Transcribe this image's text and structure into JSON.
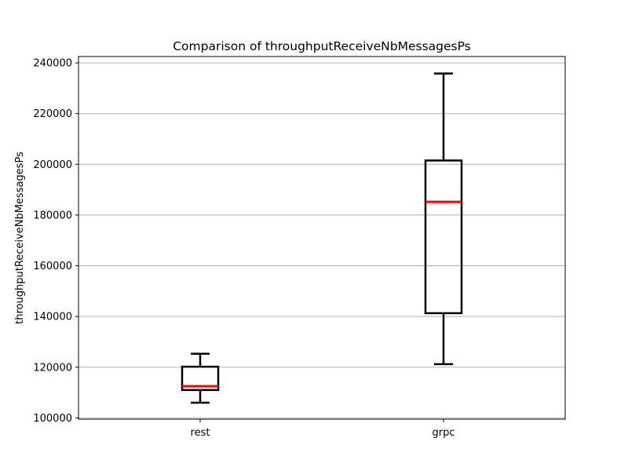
{
  "chart_data": {
    "type": "box",
    "title": "Comparison of throughputReceiveNbMessagesPs",
    "xlabel": "",
    "ylabel": "throughputReceiveNbMessagesPs",
    "categories": [
      "rest",
      "grpc"
    ],
    "boxes": [
      {
        "category": "rest",
        "whisker_low": 106000,
        "q1": 111000,
        "median": 112500,
        "q3": 120200,
        "whisker_high": 125300
      },
      {
        "category": "grpc",
        "whisker_low": 121200,
        "q1": 141300,
        "median": 185200,
        "q3": 201500,
        "whisker_high": 235800
      }
    ],
    "ylim": [
      99500,
      242500
    ],
    "yticks": [
      100000,
      120000,
      140000,
      160000,
      180000,
      200000,
      220000,
      240000
    ],
    "ytick_labels": [
      "100000",
      "120000",
      "140000",
      "160000",
      "180000",
      "200000",
      "220000",
      "240000"
    ],
    "grid": "horizontal",
    "colors": {
      "box": "#000000",
      "median": "#ff0000",
      "grid": "#b0b0b0"
    }
  }
}
